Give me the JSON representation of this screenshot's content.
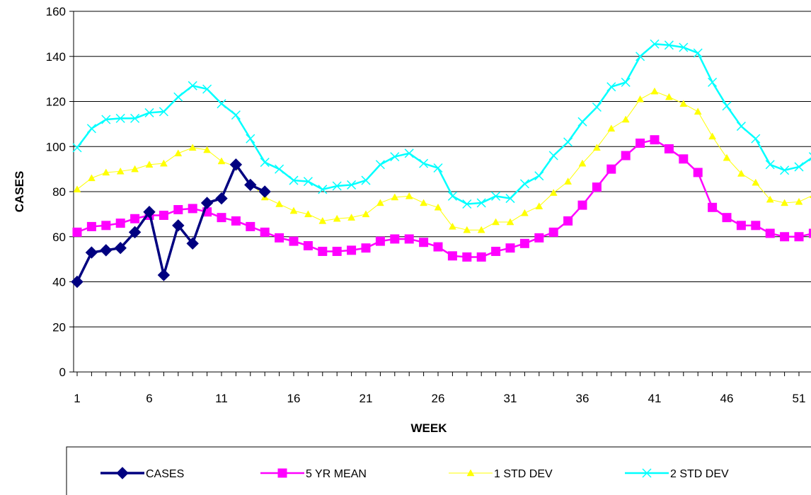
{
  "chart_data": {
    "type": "line",
    "xlabel": "WEEK",
    "ylabel": "CASES",
    "ylim": [
      0,
      160
    ],
    "xlim": [
      1,
      52
    ],
    "yticks": [
      0,
      20,
      40,
      60,
      80,
      100,
      120,
      140,
      160
    ],
    "xticks": [
      1,
      6,
      11,
      16,
      21,
      26,
      31,
      36,
      41,
      46,
      51
    ],
    "grid": "horizontal",
    "legend": "bottom",
    "series": [
      {
        "name": "CASES",
        "color": "#000080",
        "marker": "diamond",
        "x": [
          1,
          2,
          3,
          4,
          5,
          6,
          7,
          8,
          9,
          10,
          11,
          12,
          13,
          14
        ],
        "values": [
          40,
          53,
          54,
          55,
          62,
          71,
          43,
          65,
          57,
          75,
          77,
          92,
          83,
          80
        ]
      },
      {
        "name": "5 YR MEAN",
        "color": "#ff00ff",
        "marker": "square",
        "x": [
          1,
          2,
          3,
          4,
          5,
          6,
          7,
          8,
          9,
          10,
          11,
          12,
          13,
          14,
          15,
          16,
          17,
          18,
          19,
          20,
          21,
          22,
          23,
          24,
          25,
          26,
          27,
          28,
          29,
          30,
          31,
          32,
          33,
          34,
          35,
          36,
          37,
          38,
          39,
          40,
          41,
          42,
          43,
          44,
          45,
          46,
          47,
          48,
          49,
          50,
          51,
          52
        ],
        "values": [
          62,
          64.5,
          65,
          66,
          68,
          69.5,
          69.5,
          72,
          72.5,
          71,
          68.5,
          67,
          64.5,
          62,
          59.5,
          58,
          56,
          53.5,
          53.5,
          54,
          55,
          58,
          59,
          59,
          57.5,
          55.5,
          51.5,
          51,
          51,
          53.5,
          55,
          57,
          59.5,
          62,
          67,
          74,
          82,
          90,
          96,
          101.5,
          103,
          99,
          94.5,
          88.5,
          73,
          68.5,
          65,
          65,
          61.5,
          60,
          60,
          61.5
        ]
      },
      {
        "name": "1 STD DEV",
        "color": "#ffff00",
        "marker": "triangle",
        "x": [
          1,
          2,
          3,
          4,
          5,
          6,
          7,
          8,
          9,
          10,
          11,
          12,
          13,
          14,
          15,
          16,
          17,
          18,
          19,
          20,
          21,
          22,
          23,
          24,
          25,
          26,
          27,
          28,
          29,
          30,
          31,
          32,
          33,
          34,
          35,
          36,
          37,
          38,
          39,
          40,
          41,
          42,
          43,
          44,
          45,
          46,
          47,
          48,
          49,
          50,
          51,
          52
        ],
        "values": [
          81,
          86,
          88.5,
          89,
          90,
          92,
          92.5,
          97,
          99.5,
          98.5,
          93.5,
          91,
          84,
          77.5,
          74.5,
          71.5,
          70,
          67,
          68,
          68.5,
          70,
          75,
          77.5,
          78,
          75,
          73,
          64.5,
          63,
          63,
          66.5,
          66.5,
          70.5,
          73.5,
          79.5,
          84.5,
          92.5,
          99.5,
          108,
          112,
          121,
          124.5,
          122,
          119,
          115.5,
          104.5,
          95,
          88,
          84,
          76.5,
          75,
          75.5,
          78.5
        ]
      },
      {
        "name": "2 STD DEV",
        "color": "#00ffff",
        "marker": "x",
        "x": [
          1,
          2,
          3,
          4,
          5,
          6,
          7,
          8,
          9,
          10,
          11,
          12,
          13,
          14,
          15,
          16,
          17,
          18,
          19,
          20,
          21,
          22,
          23,
          24,
          25,
          26,
          27,
          28,
          29,
          30,
          31,
          32,
          33,
          34,
          35,
          36,
          37,
          38,
          39,
          40,
          41,
          42,
          43,
          44,
          45,
          46,
          47,
          48,
          49,
          50,
          51,
          52
        ],
        "values": [
          99.5,
          108,
          112,
          112.5,
          112.5,
          115,
          115.5,
          122,
          127,
          125.5,
          119,
          114,
          103.5,
          93,
          90,
          85,
          84.5,
          81,
          82.5,
          83,
          85,
          92,
          95.5,
          97,
          92.5,
          90.5,
          78,
          74.5,
          75,
          78,
          77,
          83.5,
          87,
          96,
          102,
          111,
          117.5,
          126.5,
          128.5,
          140,
          145.5,
          145,
          144,
          141.5,
          128.5,
          118,
          109,
          103.5,
          92,
          89.5,
          91,
          95.5
        ]
      }
    ]
  }
}
